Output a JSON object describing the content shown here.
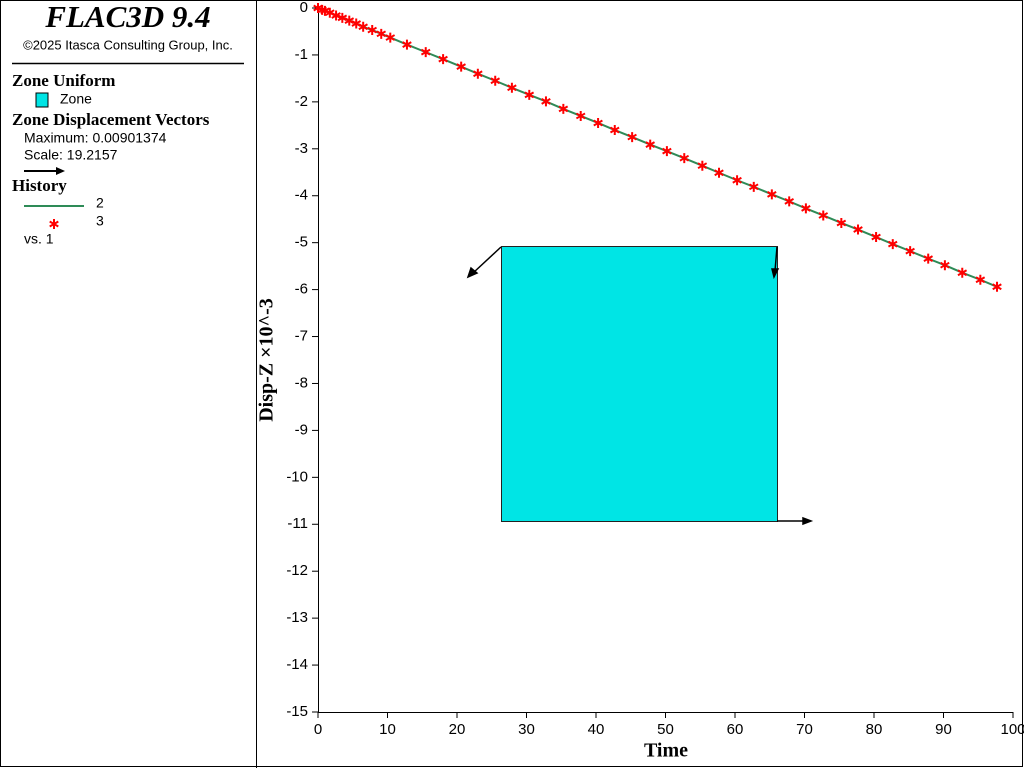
{
  "header": {
    "title": "FLAC3D 9.4",
    "copyright": "©2025 Itasca Consulting Group, Inc."
  },
  "legend": {
    "zone_heading": "Zone Uniform",
    "zone_item": "Zone",
    "vectors_heading": "Zone Displacement Vectors",
    "vectors_max": "Maximum: 0.00901374",
    "vectors_scale": "Scale: 19.2157",
    "history_heading": "History",
    "history_vs": "vs. 1"
  },
  "chart_data": {
    "type": "line",
    "x_label": "Time",
    "y_label": "Disp-Z ×10^-3",
    "x": [
      0,
      0.6,
      1,
      1.7,
      2.6,
      3.5,
      4.5,
      5.5,
      6.5,
      7.8,
      9.1,
      10.4,
      12.8,
      15.5,
      18,
      20.6,
      23,
      25.5,
      27.9,
      30.4,
      32.8,
      35.3,
      37.8,
      40.3,
      42.7,
      45.2,
      47.8,
      50.2,
      52.7,
      55.3,
      57.7,
      60.3,
      62.7,
      65.3,
      67.8,
      70.2,
      72.7,
      75.3,
      77.7,
      80.3,
      82.7,
      85.2,
      87.8,
      90.2,
      92.7,
      95.3,
      97.7
    ],
    "series": [
      {
        "name": "2",
        "color": "#2e8b57",
        "style": "line",
        "values": [
          0,
          -0.04,
          -0.06,
          -0.1,
          -0.16,
          -0.21,
          -0.27,
          -0.33,
          -0.4,
          -0.47,
          -0.55,
          -0.63,
          -0.78,
          -0.94,
          -1.09,
          -1.25,
          -1.4,
          -1.55,
          -1.7,
          -1.85,
          -1.99,
          -2.15,
          -2.3,
          -2.45,
          -2.6,
          -2.75,
          -2.91,
          -3.05,
          -3.2,
          -3.36,
          -3.51,
          -3.67,
          -3.81,
          -3.97,
          -4.12,
          -4.27,
          -4.42,
          -4.58,
          -4.72,
          -4.88,
          -5.03,
          -5.18,
          -5.34,
          -5.48,
          -5.64,
          -5.79,
          -5.94
        ]
      },
      {
        "name": "3",
        "color": "#ff0000",
        "style": "markers",
        "values": [
          0,
          -0.04,
          -0.06,
          -0.1,
          -0.16,
          -0.21,
          -0.27,
          -0.33,
          -0.4,
          -0.47,
          -0.55,
          -0.63,
          -0.78,
          -0.94,
          -1.09,
          -1.25,
          -1.4,
          -1.55,
          -1.7,
          -1.85,
          -1.99,
          -2.15,
          -2.3,
          -2.45,
          -2.6,
          -2.75,
          -2.91,
          -3.05,
          -3.2,
          -3.36,
          -3.51,
          -3.67,
          -3.81,
          -3.97,
          -4.12,
          -4.27,
          -4.42,
          -4.58,
          -4.72,
          -4.88,
          -5.03,
          -5.18,
          -5.34,
          -5.48,
          -5.64,
          -5.79,
          -5.94
        ]
      }
    ],
    "xlim": [
      0,
      100
    ],
    "xticks": [
      0,
      10,
      20,
      30,
      40,
      50,
      60,
      70,
      80,
      90,
      100
    ],
    "ylim": [
      -15,
      0
    ],
    "yticks": [
      0,
      -1,
      -2,
      -3,
      -4,
      -5,
      -6,
      -7,
      -8,
      -9,
      -10,
      -11,
      -12,
      -13,
      -14,
      -15
    ],
    "grid": false
  }
}
